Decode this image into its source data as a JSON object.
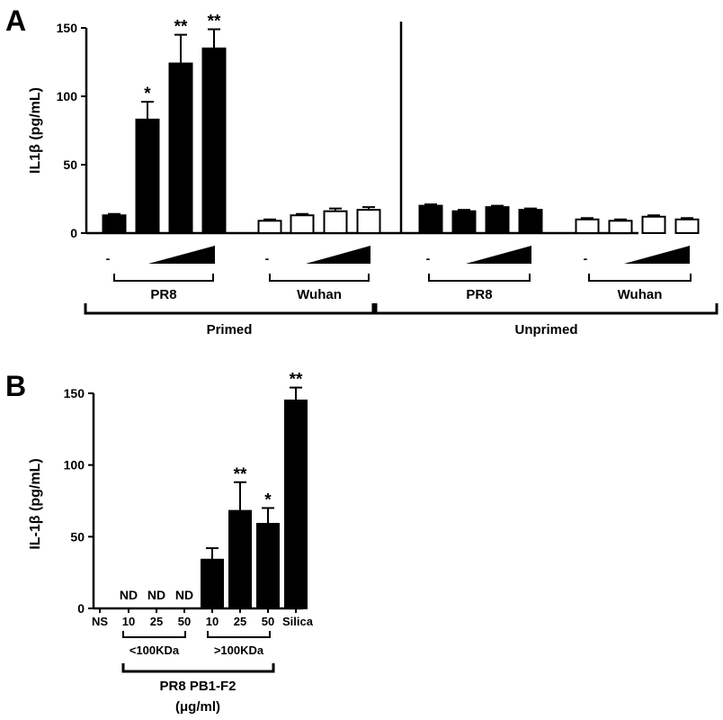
{
  "chart_data": [
    {
      "panel": "A",
      "type": "bar",
      "ylabel": "IL1β (pg/mL)",
      "ylim": [
        0,
        150
      ],
      "yticks": [
        0,
        50,
        100,
        150
      ],
      "series": [
        {
          "name": "",
          "values": [
            13,
            83,
            124,
            135,
            9,
            13,
            16,
            17,
            20,
            16,
            19,
            17,
            10,
            9,
            12,
            10
          ],
          "errors": [
            1,
            13,
            21,
            14,
            1,
            1,
            2,
            2,
            1,
            1,
            1,
            1,
            1,
            1,
            1,
            1
          ],
          "fills": [
            "#000000",
            "#000000",
            "#000000",
            "#000000",
            "#ffffff",
            "#ffffff",
            "#ffffff",
            "#ffffff",
            "#000000",
            "#000000",
            "#000000",
            "#000000",
            "#ffffff",
            "#ffffff",
            "#ffffff",
            "#ffffff"
          ],
          "stars": [
            "",
            "*",
            "**",
            "**",
            "",
            "",
            "",
            "",
            "",
            "",
            "",
            "",
            "",
            "",
            "",
            ""
          ]
        }
      ],
      "dash_label": "-",
      "subgroups": [
        "PR8",
        "Wuhan",
        "PR8",
        "Wuhan"
      ],
      "groups": [
        "Primed",
        "Unprimed"
      ]
    },
    {
      "panel": "B",
      "type": "bar",
      "ylabel": "IL-1β (pg/mL)",
      "ylim": [
        0,
        150
      ],
      "yticks": [
        0,
        50,
        100,
        150
      ],
      "categories": [
        "NS",
        "10",
        "25",
        "50",
        "10",
        "25",
        "50",
        "Silica"
      ],
      "series": [
        {
          "name": "",
          "values": [
            0,
            0,
            0,
            0,
            34,
            68,
            59,
            145
          ],
          "errors": [
            0,
            0,
            0,
            0,
            8,
            20,
            11,
            9
          ],
          "stars": [
            "",
            "",
            "",
            "",
            "",
            "**",
            "*",
            "**"
          ],
          "nd": [
            "",
            "ND",
            "ND",
            "ND",
            "",
            "",
            "",
            ""
          ]
        }
      ],
      "subgroups": [
        "<100KDa",
        ">100KDa"
      ],
      "group_line1": "PR8 PB1-F2",
      "group_line2": "(μg/ml)"
    }
  ]
}
